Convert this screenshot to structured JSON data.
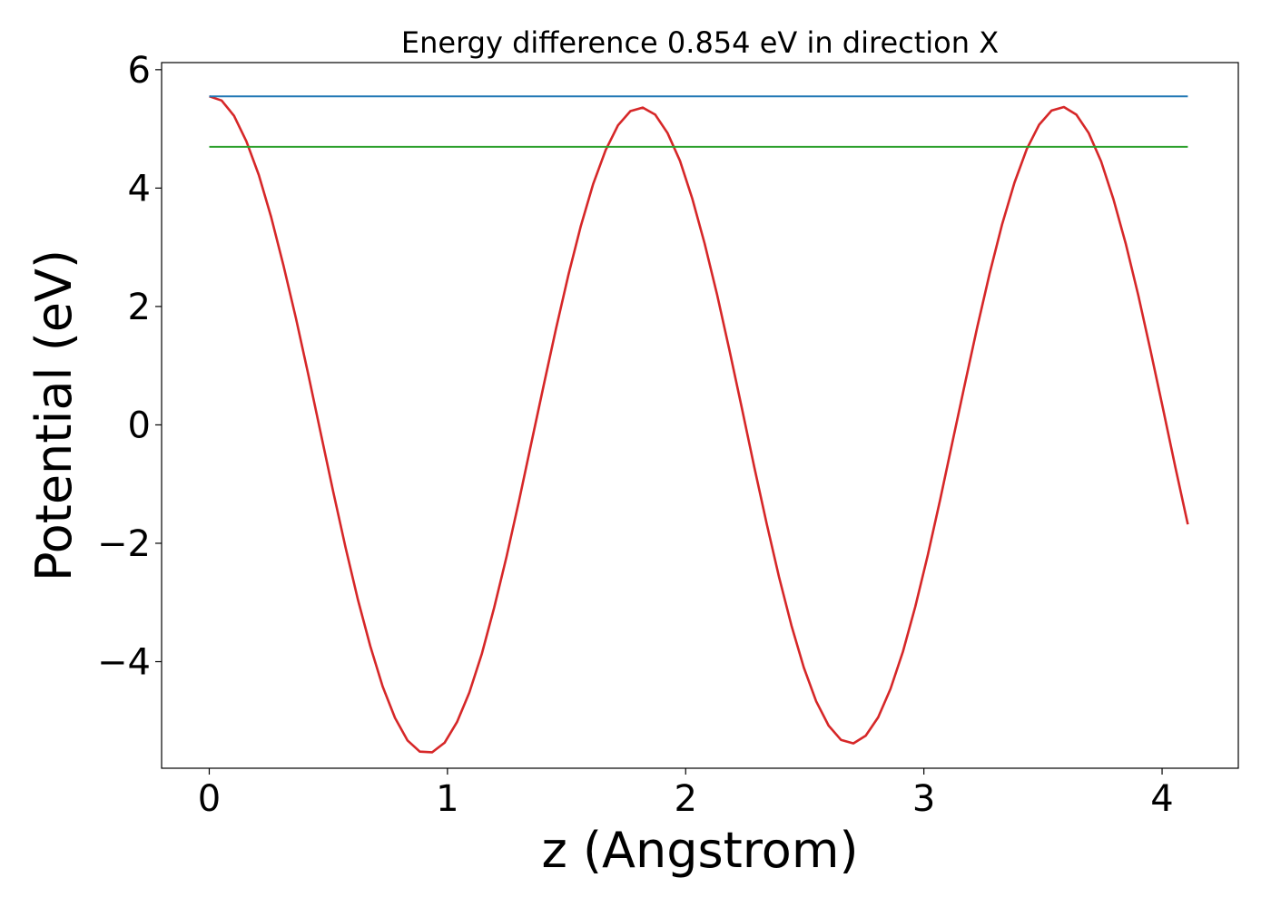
{
  "chart_data": {
    "type": "line",
    "title": "Energy difference 0.854 eV in direction X",
    "xlabel": "z (Angstrom)",
    "ylabel": "Potential (eV)",
    "xlim": [
      -0.2,
      4.32
    ],
    "ylim": [
      -5.8,
      6.12
    ],
    "xticks": [
      0,
      1,
      2,
      3,
      4
    ],
    "xtick_labels": [
      "0",
      "1",
      "2",
      "3",
      "4"
    ],
    "yticks": [
      -4,
      -2,
      0,
      2,
      4,
      6
    ],
    "ytick_labels": [
      "−4",
      "−2",
      "0",
      "2",
      "4",
      "6"
    ],
    "grid": false,
    "legend": "none",
    "series": [
      {
        "color": "#d62728",
        "style": "potential-curve",
        "x": [
          0.0,
          0.052,
          0.104,
          0.156,
          0.208,
          0.26,
          0.312,
          0.364,
          0.416,
          0.468,
          0.52,
          0.572,
          0.624,
          0.676,
          0.728,
          0.78,
          0.832,
          0.884,
          0.936,
          0.988,
          1.04,
          1.092,
          1.144,
          1.196,
          1.248,
          1.3,
          1.352,
          1.404,
          1.456,
          1.508,
          1.56,
          1.612,
          1.664,
          1.716,
          1.768,
          1.82,
          1.872,
          1.924,
          1.976,
          2.028,
          2.08,
          2.132,
          2.184,
          2.236,
          2.288,
          2.34,
          2.392,
          2.444,
          2.496,
          2.548,
          2.6,
          2.652,
          2.704,
          2.756,
          2.808,
          2.86,
          2.912,
          2.964,
          3.016,
          3.068,
          3.12,
          3.172,
          3.224,
          3.276,
          3.328,
          3.38,
          3.432,
          3.484,
          3.536,
          3.588,
          3.64,
          3.692,
          3.744,
          3.796,
          3.848,
          3.9,
          3.952,
          4.004,
          4.056,
          4.108
        ],
        "y": [
          5.55,
          5.48,
          5.22,
          4.79,
          4.22,
          3.51,
          2.69,
          1.8,
          0.85,
          -0.14,
          -1.12,
          -2.07,
          -2.95,
          -3.74,
          -4.42,
          -4.95,
          -5.33,
          -5.52,
          -5.53,
          -5.37,
          -5.02,
          -4.52,
          -3.87,
          -3.09,
          -2.23,
          -1.29,
          -0.31,
          0.67,
          1.63,
          2.54,
          3.36,
          4.07,
          4.64,
          5.06,
          5.3,
          5.36,
          5.24,
          4.93,
          4.46,
          3.82,
          3.06,
          2.2,
          1.26,
          0.28,
          -0.71,
          -1.67,
          -2.57,
          -3.39,
          -4.1,
          -4.67,
          -5.08,
          -5.32,
          -5.38,
          -5.25,
          -4.94,
          -4.46,
          -3.83,
          -3.07,
          -2.21,
          -1.27,
          -0.29,
          0.69,
          1.65,
          2.56,
          3.38,
          4.09,
          4.66,
          5.07,
          5.31,
          5.37,
          5.24,
          4.93,
          4.45,
          3.81,
          3.05,
          2.19,
          1.25,
          0.27,
          -0.72,
          -1.68
        ]
      },
      {
        "color": "#1f77b4",
        "style": "max-level",
        "x": [
          0.0,
          4.108
        ],
        "y": [
          5.55,
          5.55
        ]
      },
      {
        "color": "#2ca02c",
        "style": "reference-level",
        "x": [
          0.0,
          4.108
        ],
        "y": [
          4.696,
          4.696
        ]
      }
    ]
  }
}
